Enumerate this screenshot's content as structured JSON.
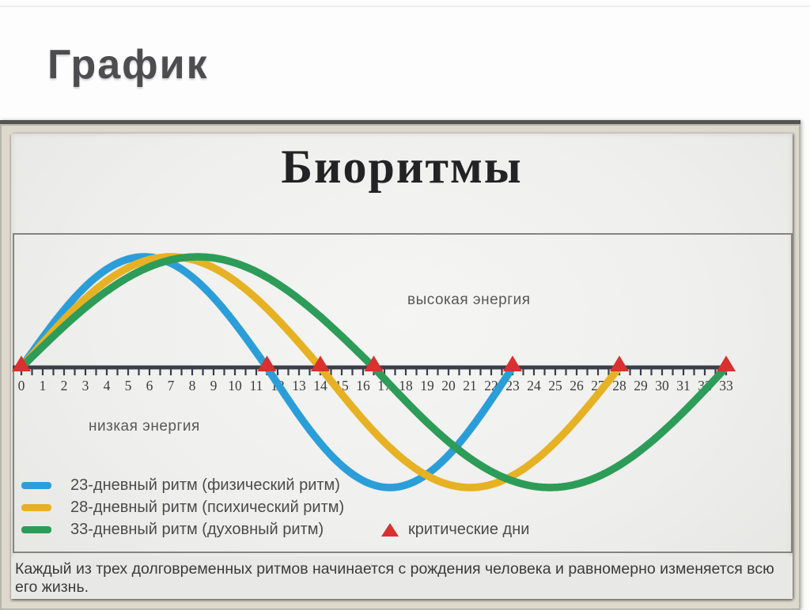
{
  "slide": {
    "title": "График"
  },
  "poster": {
    "title": "Биоритмы",
    "caption": "Каждый из трех долговременных ритмов начинается с рождения человека и равномерно изменяется всю его жизнь."
  },
  "legend": {
    "items": [
      {
        "label": "23-дневный ритм (физический ритм)",
        "color": "#2b9ed9"
      },
      {
        "label": "28-дневный ритм (психический ритм)",
        "color": "#e6b224"
      },
      {
        "label": "33-дневный ритм (духовный ритм)",
        "color": "#2d9c58"
      }
    ],
    "critical_label": "критические дни",
    "critical_color": "#d93030"
  },
  "colors": {
    "physical_rhythm": "#2b9ed9",
    "psychic_rhythm": "#e6b224",
    "spiritual_rhythm": "#2d9c58",
    "critical_marker": "#d93030",
    "axis": "#3a3e48"
  },
  "chart_data": {
    "type": "line",
    "title": "Биоритмы",
    "x_axis": {
      "min": 0,
      "max": 33,
      "tick_step": 0.5,
      "label_step": 1,
      "unit": "days"
    },
    "y_axis": {
      "min": -1,
      "max": 1,
      "shown": false
    },
    "series": [
      {
        "name": "23-дневный ритм (физический ритм)",
        "shape": "sine",
        "period_days": 23,
        "amplitude": 1,
        "x_start": 0,
        "x_end": 23,
        "color": "#2b9ed9"
      },
      {
        "name": "28-дневный ритм (психический ритм)",
        "shape": "sine",
        "period_days": 28,
        "amplitude": 1,
        "x_start": 0,
        "x_end": 28,
        "color": "#e6b224"
      },
      {
        "name": "33-дневный ритм (духовный ритм)",
        "shape": "sine",
        "period_days": 33,
        "amplitude": 1,
        "x_start": 0,
        "x_end": 33,
        "color": "#2d9c58"
      }
    ],
    "critical_days": [
      0,
      11.5,
      14,
      16.5,
      23,
      28,
      33
    ],
    "critical_marker": {
      "shape": "triangle-up",
      "color": "#d93030",
      "label": "критические дни"
    },
    "annotations": [
      {
        "text": "высокая энергия",
        "position": "above-axis"
      },
      {
        "text": "низкая энергия",
        "position": "below-axis"
      }
    ],
    "legend_position": "bottom-left",
    "grid": false
  }
}
